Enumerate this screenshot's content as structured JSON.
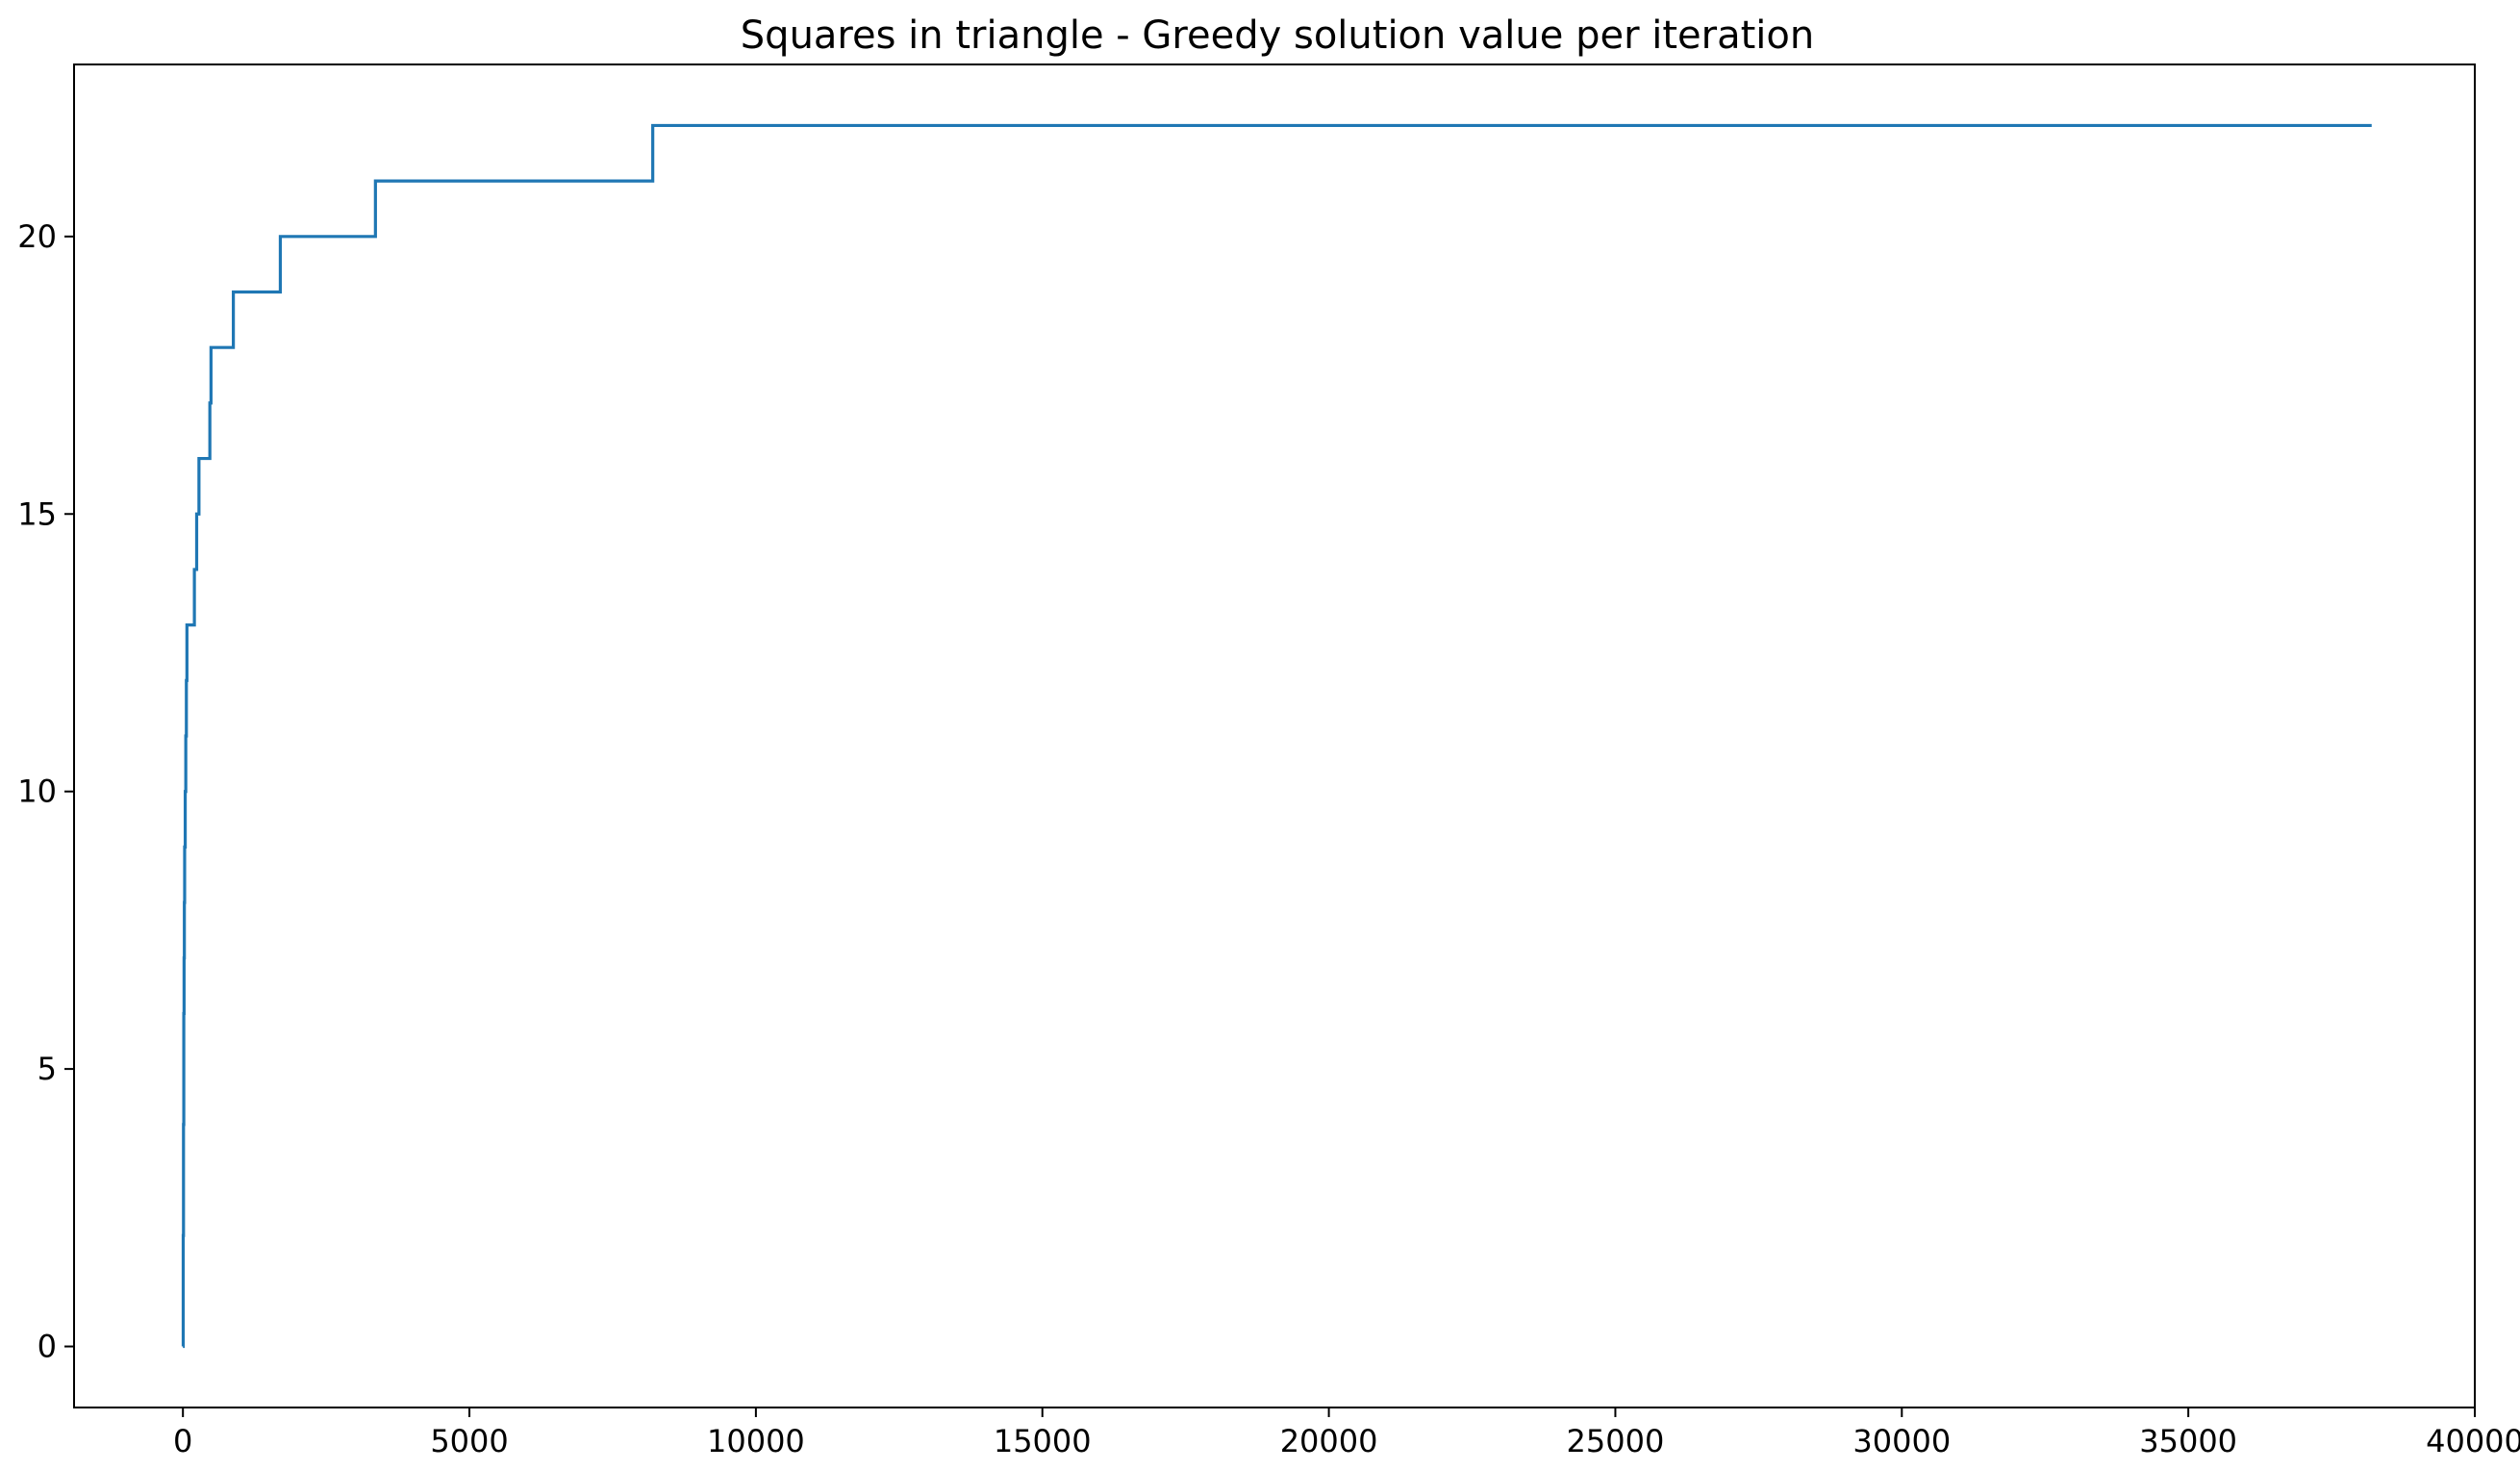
{
  "chart_data": {
    "type": "line",
    "title": "Squares in triangle - Greedy solution value per iteration",
    "xlabel": "",
    "ylabel": "",
    "xlim": [
      -1900,
      40000
    ],
    "ylim": [
      -1.1,
      23.1
    ],
    "x_ticks": [
      0,
      5000,
      10000,
      15000,
      20000,
      25000,
      30000,
      35000,
      40000
    ],
    "y_ticks": [
      0,
      5,
      10,
      15,
      20
    ],
    "grid": false,
    "legend": "none",
    "step": "post",
    "series": [
      {
        "color": "#1f77b4",
        "x": [
          0,
          5,
          10,
          15,
          20,
          25,
          30,
          40,
          50,
          60,
          70,
          90,
          110,
          130,
          160,
          200,
          240,
          280,
          330,
          470,
          490,
          880,
          1700,
          3360,
          8200,
          38200
        ],
        "y": [
          0,
          2,
          4,
          6,
          7,
          8,
          9,
          10,
          11,
          12,
          13,
          13,
          13,
          13,
          13,
          14,
          15,
          16,
          16,
          17,
          18,
          19,
          20,
          21,
          22,
          22
        ]
      }
    ]
  }
}
